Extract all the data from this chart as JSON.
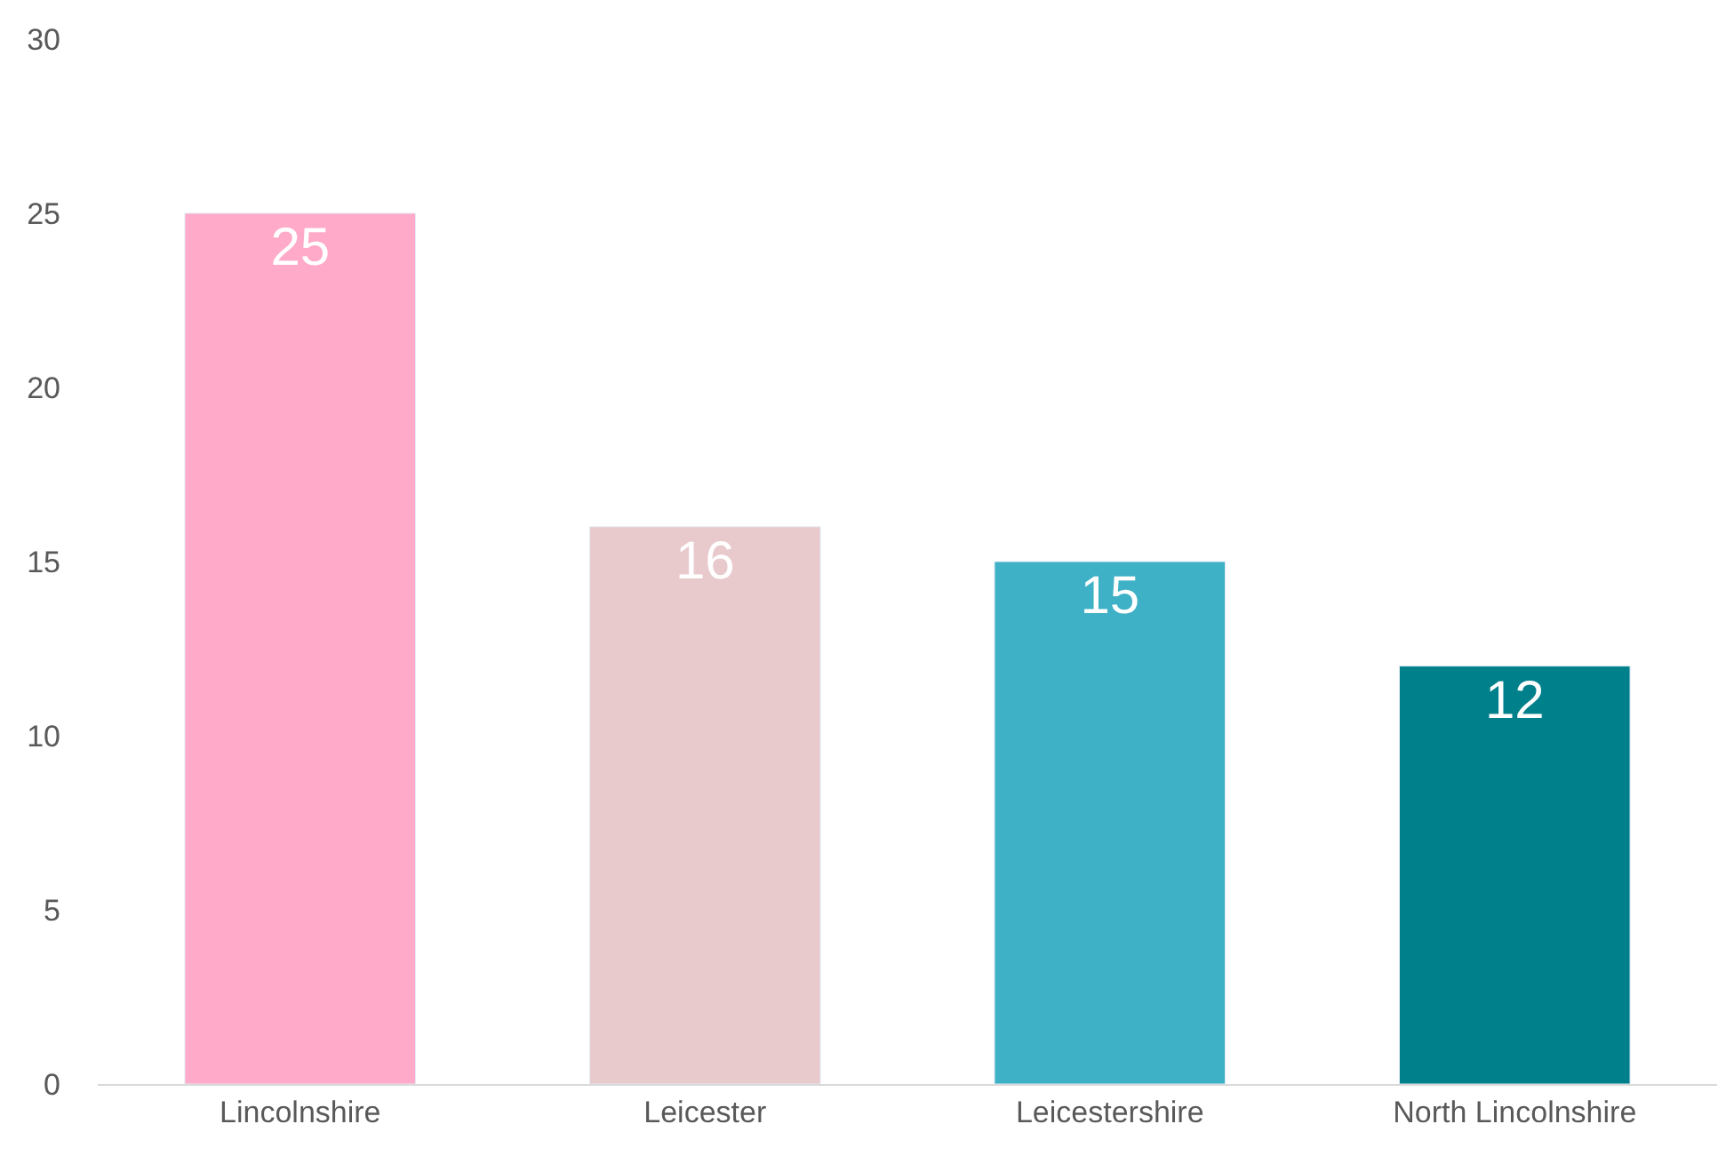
{
  "chart_data": {
    "type": "bar",
    "categories": [
      "Lincolnshire",
      "Leicester",
      "Leicestershire",
      "North Lincolnshire"
    ],
    "values": [
      25,
      16,
      15,
      12
    ],
    "colors": [
      "#ffaac8",
      "#e8cacd",
      "#3fb1c6",
      "#00808a"
    ],
    "ylim": [
      0,
      30
    ],
    "yticks": [
      0,
      5,
      10,
      15,
      20,
      25,
      30
    ],
    "data_labels": true,
    "grid": false
  }
}
